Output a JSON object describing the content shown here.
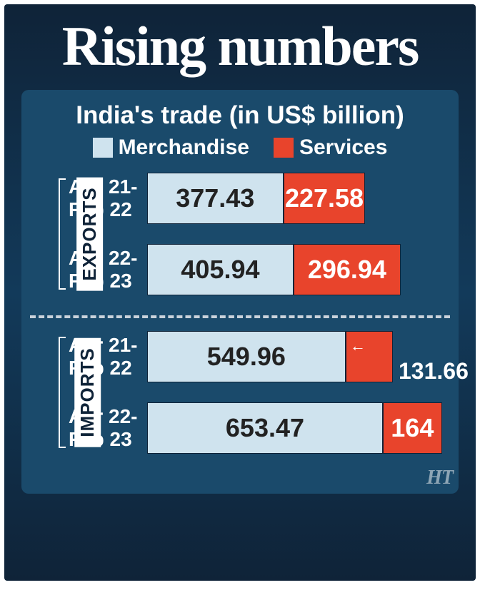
{
  "title": "Rising numbers",
  "subtitle": "India's trade (in US$ billion)",
  "colors": {
    "merchandise": "#cfe3ee",
    "services": "#e8442c",
    "card_bg_top": "#0f2338",
    "card_bg_mid": "#123a5a",
    "panel_bg": "#1a4a6b",
    "text_light": "#ffffff",
    "text_dark": "#222222",
    "divider": "#c9d2db"
  },
  "legend": {
    "merchandise": "Merchandise",
    "services": "Services"
  },
  "bar_scale_max": 820,
  "sections": [
    {
      "key": "exports",
      "label": "EXPORTS",
      "rows": [
        {
          "period_l1": "Apr 21-",
          "period_l2": "Feb 22",
          "merchandise": 377.43,
          "services": 227.58,
          "merchandise_label": "377.43",
          "services_label": "227.58",
          "callout": false
        },
        {
          "period_l1": "Apr 22-",
          "period_l2": "Feb 23",
          "merchandise": 405.94,
          "services": 296.94,
          "merchandise_label": "405.94",
          "services_label": "296.94",
          "callout": false
        }
      ]
    },
    {
      "key": "imports",
      "label": "IMPORTS",
      "rows": [
        {
          "period_l1": "Apr 21-",
          "period_l2": "Feb 22",
          "merchandise": 549.96,
          "services": 131.66,
          "merchandise_label": "549.96",
          "services_label": "",
          "callout": true,
          "callout_label": "131.66"
        },
        {
          "period_l1": "Apr 22-",
          "period_l2": "Feb 23",
          "merchandise": 653.47,
          "services": 164,
          "merchandise_label": "653.47",
          "services_label": "164",
          "callout": false
        }
      ]
    }
  ],
  "watermark": "HT"
}
